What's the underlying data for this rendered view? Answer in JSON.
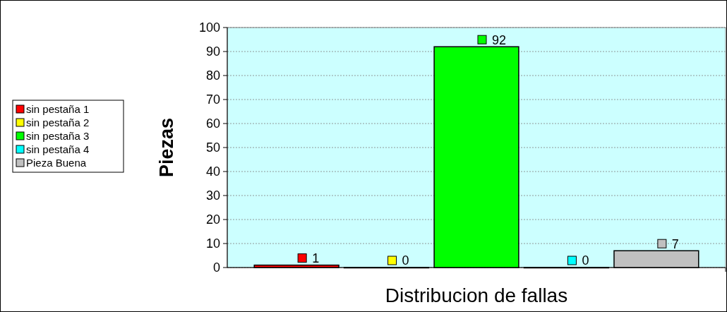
{
  "chart_data": {
    "type": "bar",
    "xlabel": "Distribucion de fallas",
    "ylabel": "Piezas",
    "categories": [
      null
    ],
    "series": [
      {
        "name": "sin pestaña 1",
        "color": "#ff0000",
        "values": [
          1
        ]
      },
      {
        "name": "sin pestaña 2",
        "color": "#ffff00",
        "values": [
          0
        ]
      },
      {
        "name": "sin pestaña 3",
        "color": "#00ff00",
        "values": [
          92
        ]
      },
      {
        "name": "sin pestaña 4",
        "color": "#00ffff",
        "values": [
          0
        ]
      },
      {
        "name": "Pieza Buena",
        "color": "#c0c0c0",
        "values": [
          7
        ]
      }
    ],
    "ylim": [
      0,
      100
    ],
    "yticks": [
      0,
      10,
      20,
      30,
      40,
      50,
      60,
      70,
      80,
      90,
      100
    ],
    "grid": "y",
    "legend": "left",
    "data_labels": true
  }
}
